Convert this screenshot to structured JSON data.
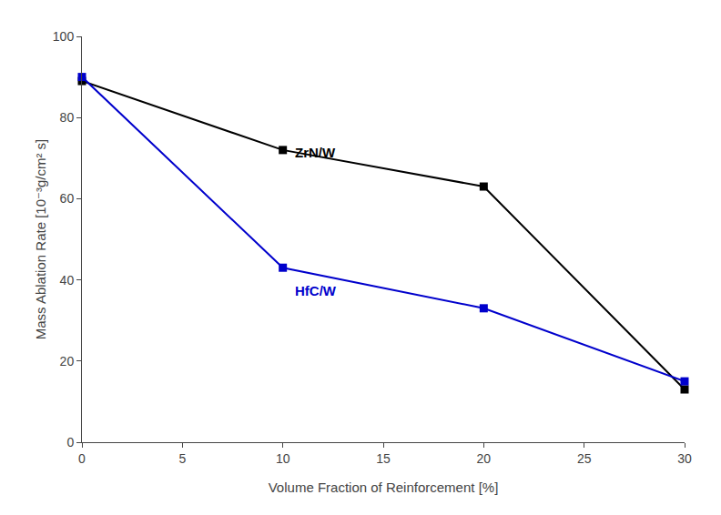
{
  "chart_data": {
    "type": "line",
    "x_label": "Volume Fraction of Reinforcement [%]",
    "y_label": "Mass Ablation Rate [10⁻³g/cm² s]",
    "x": [
      0,
      10,
      20,
      30
    ],
    "series": [
      {
        "color": "#000000",
        "values": [
          89,
          72,
          63,
          13
        ],
        "marker": "square",
        "line_style": "solid"
      },
      {
        "color": "#0000cc",
        "values": [
          90,
          43,
          33,
          15
        ],
        "marker": "square",
        "line_style": "solid"
      }
    ],
    "annotations": [
      {
        "text": "ZrN/W",
        "x": 10.5,
        "y": 69,
        "color": "#000000"
      },
      {
        "text": "HfC/W",
        "x": 10.5,
        "y": 35,
        "color": "#0000cc"
      }
    ],
    "xlim": [
      0,
      30
    ],
    "ylim": [
      0,
      100
    ],
    "xticks": [
      0,
      5,
      10,
      15,
      20,
      25,
      30
    ],
    "yticks": [
      0,
      20,
      40,
      60,
      80,
      100
    ],
    "grid": false
  }
}
